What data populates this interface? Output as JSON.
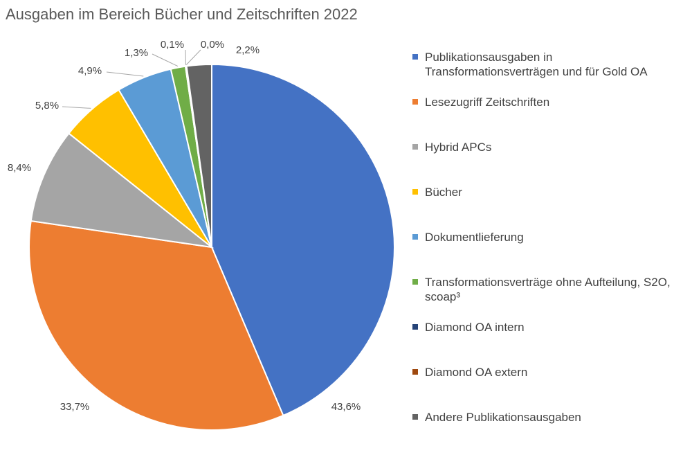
{
  "chart_data": {
    "type": "pie",
    "title": "Ausgaben im Bereich Bücher und Zeitschriften 2022",
    "legend_position": "right",
    "slices": [
      {
        "label": "Publikationsausgaben in Transformationsverträgen und für Gold OA",
        "value": 43.6,
        "display": "43,6%",
        "color": "#4472C4"
      },
      {
        "label": "Lesezugriff Zeitschriften",
        "value": 33.7,
        "display": "33,7%",
        "color": "#ED7D31"
      },
      {
        "label": "Hybrid APCs",
        "value": 8.4,
        "display": "8,4%",
        "color": "#A5A5A5"
      },
      {
        "label": "Bücher",
        "value": 5.8,
        "display": "5,8%",
        "color": "#FFC000"
      },
      {
        "label": "Dokumentlieferung",
        "value": 4.9,
        "display": "4,9%",
        "color": "#5B9BD5"
      },
      {
        "label": "Transformationsverträge ohne Aufteilung, S2O, scoap³",
        "value": 1.3,
        "display": "1,3%",
        "color": "#70AD47"
      },
      {
        "label": "Diamond OA intern",
        "value": 0.1,
        "display": "0,1%",
        "color": "#264478"
      },
      {
        "label": "Diamond OA extern",
        "value": 0.0,
        "display": "0,0%",
        "color": "#9E480E"
      },
      {
        "label": "Andere Publikationsausgaben",
        "value": 2.2,
        "display": "2,2%",
        "color": "#636363"
      }
    ]
  }
}
